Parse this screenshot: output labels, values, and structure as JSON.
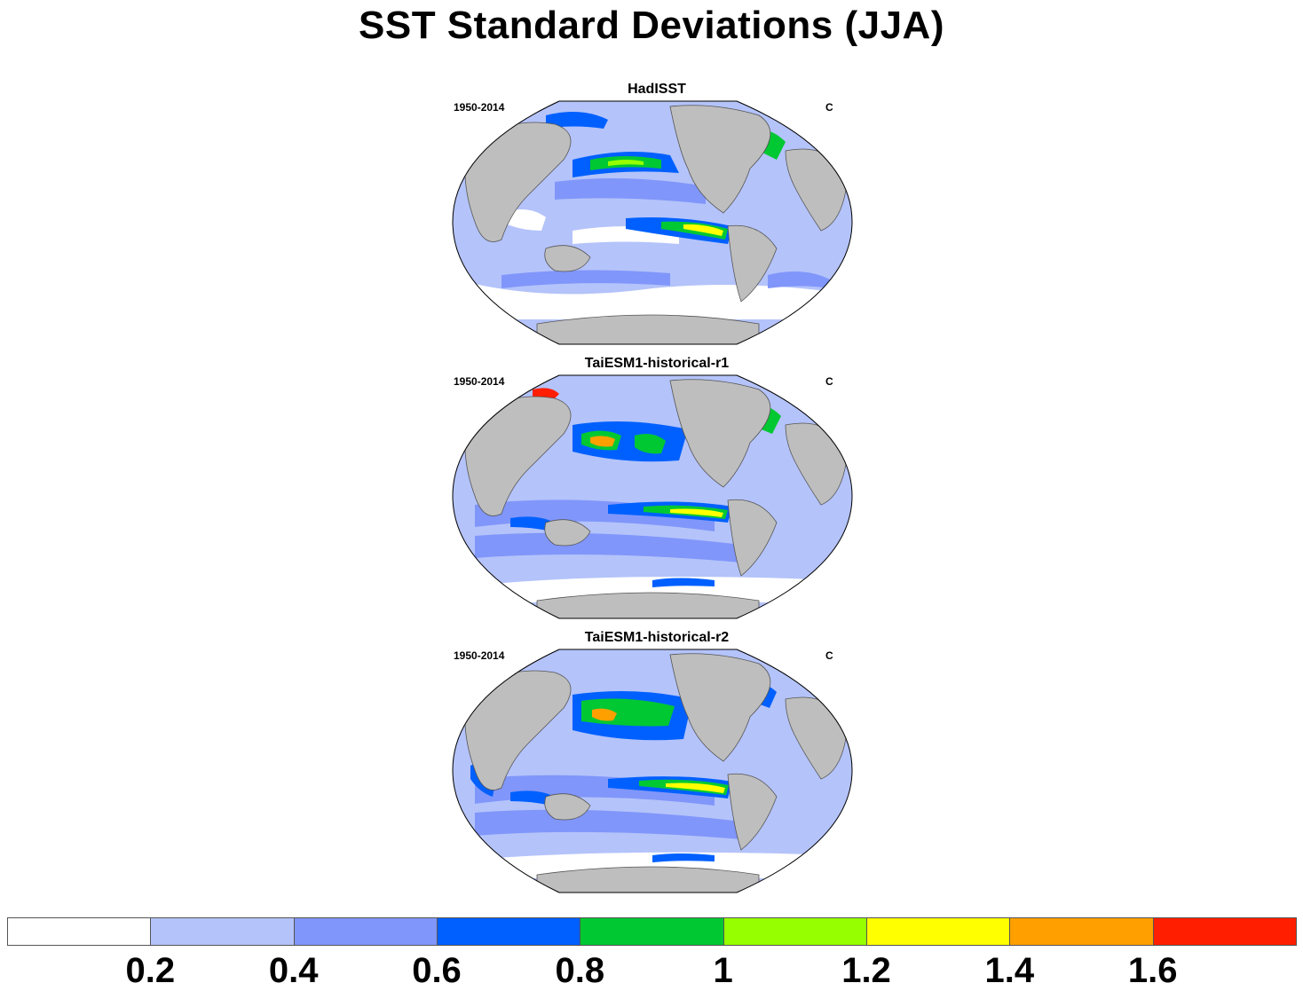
{
  "title": "SST Standard Deviations (JJA)",
  "panels": [
    {
      "title": "HadISST",
      "period": "1950-2014",
      "units": "C"
    },
    {
      "title": "TaiESM1-historical-r1",
      "period": "1950-2014",
      "units": "C"
    },
    {
      "title": "TaiESM1-historical-r2",
      "period": "1950-2014",
      "units": "C"
    }
  ],
  "colorbar": {
    "labels": [
      "0.2",
      "0.4",
      "0.6",
      "0.8",
      "1",
      "1.2",
      "1.4",
      "1.6"
    ],
    "colors": [
      "#ffffff",
      "#b4c3fa",
      "#8096fa",
      "#0060ff",
      "#00c832",
      "#96ff00",
      "#ffff00",
      "#ffa000",
      "#ff1e00"
    ]
  }
}
